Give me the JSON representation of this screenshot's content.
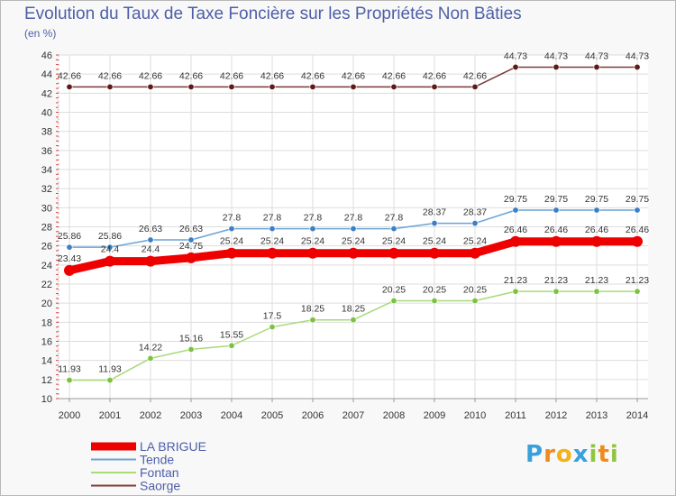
{
  "chart_data": {
    "type": "line",
    "title": "Evolution du Taux de Taxe Foncière sur les Propriétés Non Bâties",
    "subtitle": "(en %)",
    "ylim": [
      10,
      46
    ],
    "y_ticks": [
      10,
      12,
      14,
      16,
      18,
      20,
      22,
      24,
      26,
      28,
      30,
      32,
      34,
      36,
      38,
      40,
      42,
      44,
      46
    ],
    "categories": [
      "2000",
      "2001",
      "2002",
      "2003",
      "2004",
      "2005",
      "2006",
      "2007",
      "2008",
      "2009",
      "2010",
      "2011",
      "2012",
      "2013",
      "2014"
    ],
    "grid": true,
    "legend_position": "bottom-left",
    "series": [
      {
        "name": "Saorge",
        "color": "#7a3a3a",
        "marker_color": "#5c1a1a",
        "values": [
          42.66,
          42.66,
          42.66,
          42.66,
          42.66,
          42.66,
          42.66,
          42.66,
          42.66,
          42.66,
          42.66,
          44.73,
          44.73,
          44.73,
          44.73
        ],
        "labels": [
          "42.66",
          "42.66",
          "42.66",
          "42.66",
          "42.66",
          "42.66",
          "42.66",
          "42.66",
          "42.66",
          "42.66",
          "42.66",
          "44.73",
          "44.73",
          "44.73",
          "44.73"
        ]
      },
      {
        "name": "Tende",
        "color": "#6aa3d5",
        "marker_color": "#3b7fc4",
        "values": [
          25.86,
          25.86,
          26.63,
          26.63,
          27.8,
          27.8,
          27.8,
          27.8,
          27.8,
          28.37,
          28.37,
          29.75,
          29.75,
          29.75,
          29.75
        ],
        "labels": [
          "25.86",
          "25.86",
          "26.63",
          "26.63",
          "27.8",
          "27.8",
          "27.8",
          "27.8",
          "27.8",
          "28.37",
          "28.37",
          "29.75",
          "29.75",
          "29.75",
          "29.75"
        ]
      },
      {
        "name": "LA BRIGUE",
        "color": "#ee0000",
        "marker_color": "#ee0000",
        "values": [
          23.43,
          24.4,
          24.4,
          24.75,
          25.24,
          25.24,
          25.24,
          25.24,
          25.24,
          25.24,
          25.24,
          26.46,
          26.46,
          26.46,
          26.46
        ],
        "labels": [
          "23.43",
          "24.4",
          "24.4",
          "24.75",
          "25.24",
          "25.24",
          "25.24",
          "25.24",
          "25.24",
          "25.24",
          "25.24",
          "26.46",
          "26.46",
          "26.46",
          "26.46"
        ]
      },
      {
        "name": "Fontan",
        "color": "#a8da78",
        "marker_color": "#7cc242",
        "values": [
          11.93,
          11.93,
          14.22,
          15.16,
          15.55,
          17.5,
          18.25,
          18.25,
          20.25,
          20.25,
          20.25,
          21.23,
          21.23,
          21.23,
          21.23
        ],
        "labels": [
          "11.93",
          "11.93",
          "14.22",
          "15.16",
          "15.55",
          "17.5",
          "18.25",
          "18.25",
          "20.25",
          "20.25",
          "20.25",
          "21.23",
          "21.23",
          "21.23",
          "21.23"
        ]
      }
    ],
    "legend": [
      "LA BRIGUE",
      "Tende",
      "Fontan",
      "Saorge"
    ]
  },
  "logo": {
    "letters": [
      "P",
      "r",
      "o",
      "x",
      "i",
      "t",
      "i"
    ]
  }
}
